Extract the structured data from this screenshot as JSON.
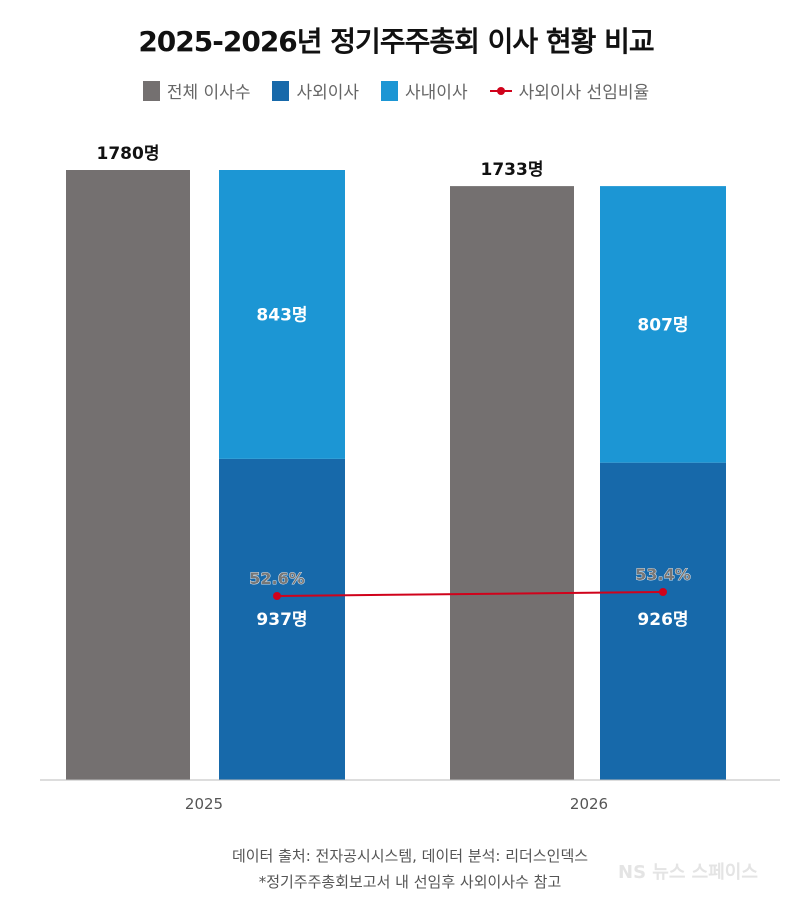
{
  "title": "2025-2026년 정기주주총회 이사 현황 비교",
  "chart_data": {
    "type": "bar",
    "title": "2025-2026년 정기주주총회 이사 현황 비교",
    "categories": [
      "2025",
      "2026"
    ],
    "legend_position": "top",
    "grid": false,
    "series": [
      {
        "name": "전체 이사수",
        "values": [
          1780,
          1733
        ],
        "labels": [
          "1780명",
          "1733명"
        ],
        "color": "#747070"
      },
      {
        "name": "사외이사",
        "values": [
          937,
          926
        ],
        "labels": [
          "937명",
          "926명"
        ],
        "color": "#1769aa",
        "stack": "inner"
      },
      {
        "name": "사내이사",
        "values": [
          843,
          807
        ],
        "labels": [
          "843명",
          "807명"
        ],
        "color": "#1c96d4",
        "stack": "inner"
      },
      {
        "name": "사외이사 선임비율",
        "type": "line",
        "values": [
          52.6,
          53.4
        ],
        "labels": [
          "52.6%",
          "53.4%"
        ],
        "color": "#d0021b"
      }
    ],
    "ylim": [
      0,
      1780
    ]
  },
  "source": "데이터 출처: 전자공시시스템, 데이터 분석: 리더스인덱스",
  "note": "*정기주주총회보고서 내 선임후 사외이사수 참고",
  "watermark": "NS 뉴스스페이스"
}
